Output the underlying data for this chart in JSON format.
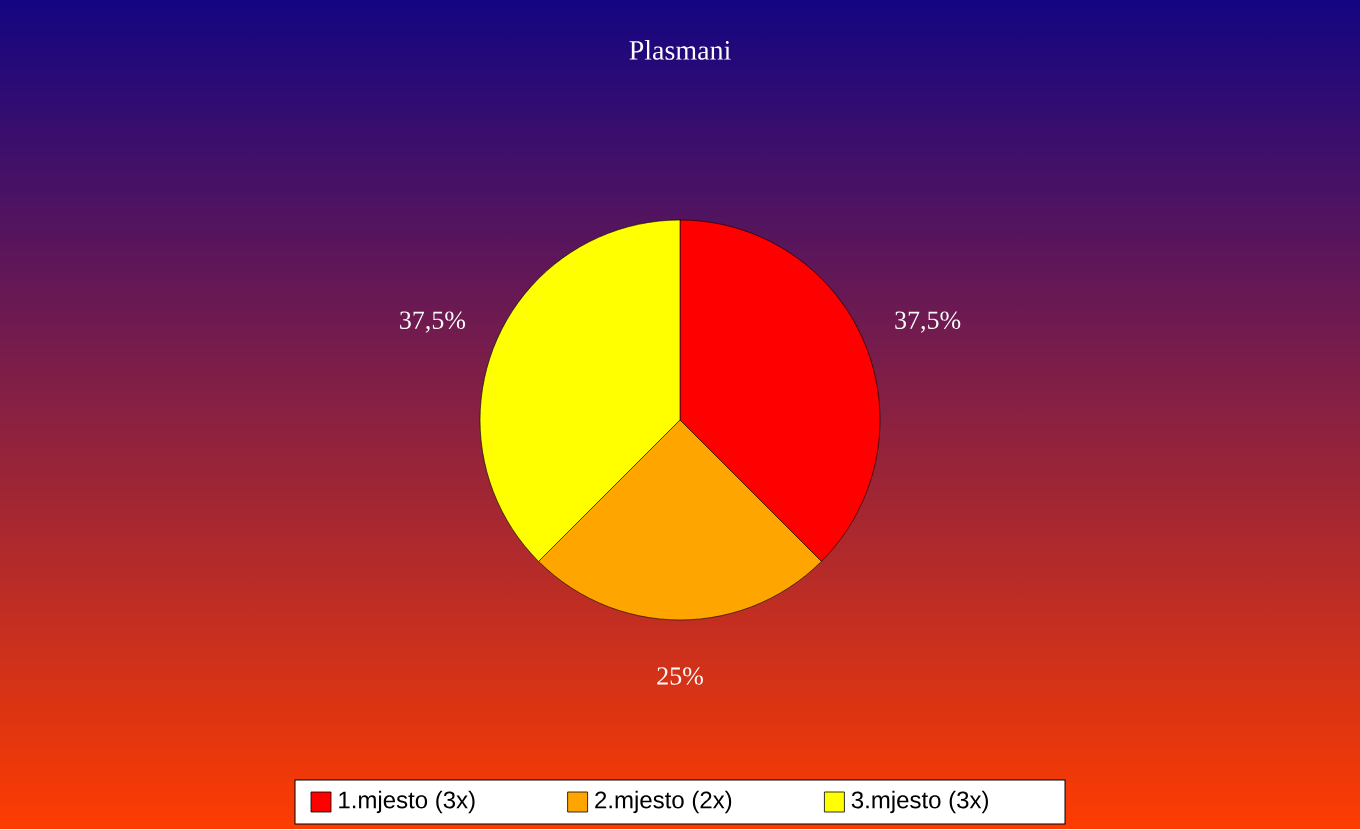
{
  "chart_data": {
    "type": "pie",
    "title": "Plasmani",
    "categories": [
      "1.mjesto (3x)",
      "2.mjesto (2x)",
      "3.mjesto (3x)"
    ],
    "values": [
      37.5,
      25,
      37.5
    ],
    "colors": [
      "#ff0000",
      "#ffa500",
      "#ffff00"
    ],
    "value_labels": [
      "37,5%",
      "25%",
      "37,5%"
    ],
    "legend": "bottom"
  }
}
